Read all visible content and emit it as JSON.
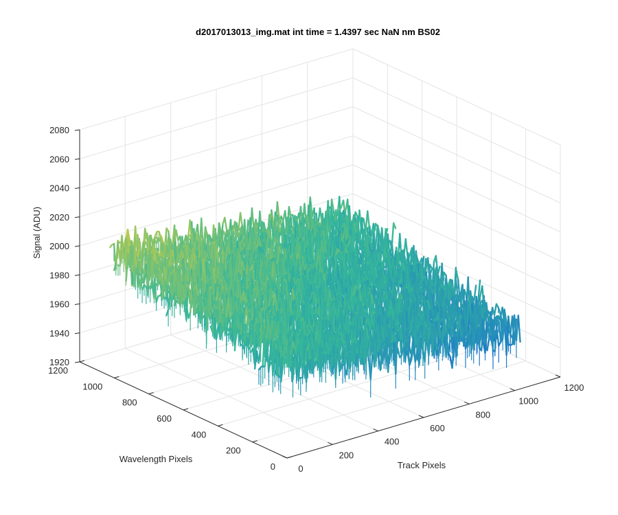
{
  "chart_data": {
    "type": "surface",
    "title": "d2017013013_img.mat int time = 1.4397 sec  NaN nm BS02",
    "xlabel": "Track Pixels",
    "ylabel": "Wavelength Pixels",
    "zlabel": "Signal (ADU)",
    "xlim": [
      0,
      1200
    ],
    "ylim": [
      0,
      1200
    ],
    "zlim": [
      1920,
      2080
    ],
    "x_ticks": [
      "0",
      "200",
      "400",
      "600",
      "800",
      "1000",
      "1200"
    ],
    "y_ticks": [
      "0",
      "200",
      "400",
      "600",
      "800",
      "1000",
      "1200"
    ],
    "z_ticks": [
      "1920",
      "1940",
      "1960",
      "1980",
      "2000",
      "2020",
      "2040",
      "2060",
      "2080"
    ],
    "grid": true,
    "colormap": "parula",
    "data_extent": {
      "x": [
        0,
        1024
      ],
      "y": [
        0,
        1024
      ]
    },
    "surface_trend": {
      "mean_at_x0_y1024": 2005,
      "mean_at_x1024_y0": 1960,
      "noise_amplitude": 20
    },
    "colors": {
      "high": "#f9d42e",
      "mid": "#35b79a",
      "low": "#1668d8",
      "grid": "#e3e3e3",
      "axis": "#262626"
    }
  }
}
